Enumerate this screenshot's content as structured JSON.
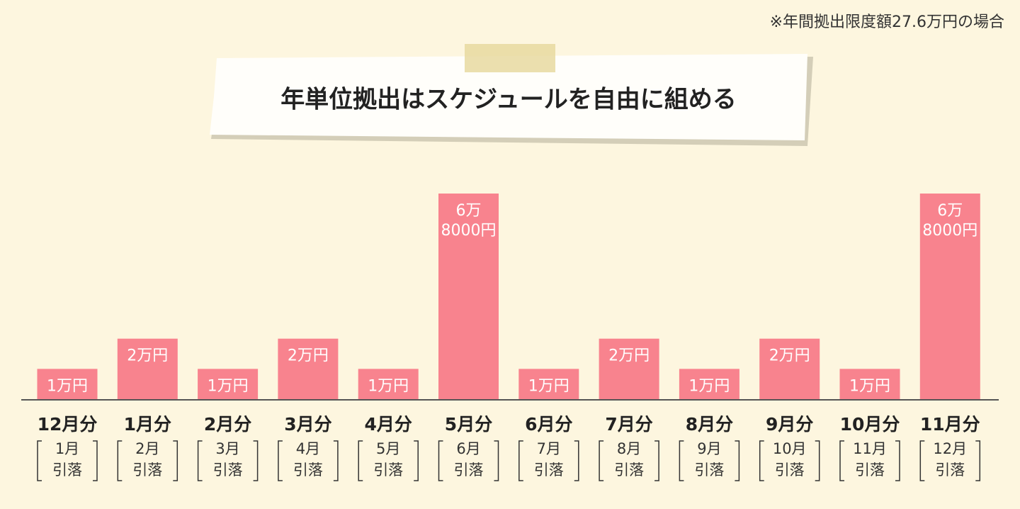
{
  "chart_data": {
    "type": "bar",
    "title": "年単位拠出はスケジュールを自由に組める",
    "note": "※年間拠出限度額27.6万円の場合",
    "categories": [
      "12月分",
      "1月分",
      "2月分",
      "3月分",
      "4月分",
      "5月分",
      "6月分",
      "7月分",
      "8月分",
      "9月分",
      "10月分",
      "11月分"
    ],
    "withdrawal_months": [
      "1月",
      "2月",
      "3月",
      "4月",
      "5月",
      "6月",
      "7月",
      "8月",
      "9月",
      "10月",
      "11月",
      "12月"
    ],
    "withdrawal_label": "引落",
    "values": [
      10000,
      20000,
      10000,
      20000,
      10000,
      68000,
      10000,
      20000,
      10000,
      20000,
      10000,
      68000
    ],
    "value_labels": [
      "1万円",
      "2万円",
      "1万円",
      "2万円",
      "1万円",
      "6万8000円",
      "1万円",
      "2万円",
      "1万円",
      "2万円",
      "1万円",
      "6万8000円"
    ],
    "color": "#f8838e"
  }
}
